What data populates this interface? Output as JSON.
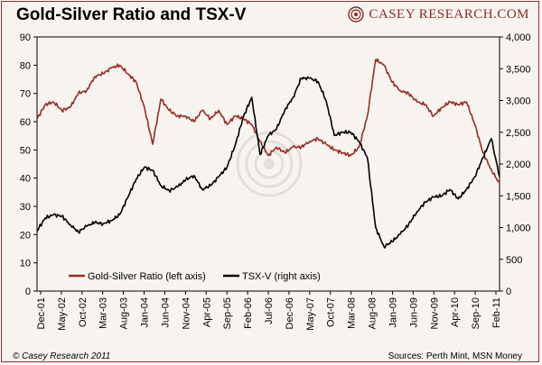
{
  "header": {
    "title": "Gold-Silver Ratio and TSX-V",
    "brand": "CASEY RESEARCH.COM"
  },
  "footer": {
    "copyright": "© Casey Research 2011",
    "sources": "Sources: Perth Mint, MSN Money"
  },
  "colors": {
    "ratio": "#9b2b24",
    "tsxv": "#000000",
    "frame": "#8c2a25",
    "background": "#f7f4ef"
  },
  "chart_data": {
    "type": "line",
    "title": "Gold-Silver Ratio and TSX-V",
    "x_ticks": [
      "Dec-01",
      "May-02",
      "Oct-02",
      "Mar-03",
      "Aug-03",
      "Jan-04",
      "Jun-04",
      "Nov-04",
      "Apr-05",
      "Sep-05",
      "Feb-06",
      "Jul-06",
      "Dec-06",
      "May-07",
      "Oct-07",
      "Mar-08",
      "Aug-08",
      "Jan-09",
      "Jun-09",
      "Nov-09",
      "Apr-10",
      "Sep-10",
      "Feb-11"
    ],
    "y_left": {
      "min": 0,
      "max": 90,
      "step": 10,
      "ticks": [
        "0",
        "10",
        "20",
        "30",
        "40",
        "50",
        "60",
        "70",
        "80",
        "90"
      ]
    },
    "y_right": {
      "min": 0,
      "max": 4000,
      "step": 500,
      "ticks": [
        "0",
        "500",
        "1,000",
        "1,500",
        "2,000",
        "2,500",
        "3,000",
        "3,500",
        "4,000"
      ]
    },
    "legend_placement": "bottom-left",
    "grid": false,
    "series": [
      {
        "name": "Gold-Silver Ratio (left axis)",
        "axis": "left",
        "x": [
          "2001-12",
          "2002-02",
          "2002-04",
          "2002-06",
          "2002-08",
          "2002-10",
          "2002-12",
          "2003-02",
          "2003-04",
          "2003-06",
          "2003-08",
          "2003-10",
          "2003-12",
          "2004-02",
          "2004-04",
          "2004-06",
          "2004-08",
          "2004-10",
          "2004-12",
          "2005-02",
          "2005-04",
          "2005-06",
          "2005-08",
          "2005-10",
          "2005-12",
          "2006-02",
          "2006-04",
          "2006-06",
          "2006-08",
          "2006-10",
          "2006-12",
          "2007-02",
          "2007-04",
          "2007-06",
          "2007-08",
          "2007-10",
          "2007-12",
          "2008-02",
          "2008-04",
          "2008-06",
          "2008-08",
          "2008-10",
          "2008-12",
          "2009-02",
          "2009-04",
          "2009-06",
          "2009-08",
          "2009-10",
          "2009-12",
          "2010-02",
          "2010-04",
          "2010-06",
          "2010-08",
          "2010-10",
          "2010-12",
          "2011-02",
          "2011-04"
        ],
        "values": [
          61,
          66,
          67,
          64,
          65,
          70,
          71,
          76,
          77,
          79,
          80,
          77,
          74,
          65,
          52,
          68,
          64,
          62,
          62,
          60,
          64,
          61,
          64,
          59,
          62,
          61,
          59,
          53,
          48,
          51,
          49,
          51,
          51,
          53,
          54,
          52,
          50,
          49,
          48,
          51,
          62,
          82,
          80,
          74,
          71,
          70,
          67,
          66,
          62,
          65,
          67,
          66,
          67,
          59,
          49,
          43,
          38
        ]
      },
      {
        "name": "TSX-V (right axis)",
        "axis": "right",
        "x": [
          "2001-12",
          "2002-02",
          "2002-04",
          "2002-06",
          "2002-08",
          "2002-10",
          "2002-12",
          "2003-02",
          "2003-04",
          "2003-06",
          "2003-08",
          "2003-10",
          "2003-12",
          "2004-02",
          "2004-04",
          "2004-06",
          "2004-08",
          "2004-10",
          "2004-12",
          "2005-02",
          "2005-04",
          "2005-06",
          "2005-08",
          "2005-10",
          "2005-12",
          "2006-02",
          "2006-04",
          "2006-06",
          "2006-08",
          "2006-10",
          "2006-12",
          "2007-02",
          "2007-04",
          "2007-06",
          "2007-08",
          "2007-10",
          "2007-12",
          "2008-02",
          "2008-04",
          "2008-06",
          "2008-08",
          "2008-10",
          "2008-12",
          "2009-02",
          "2009-04",
          "2009-06",
          "2009-08",
          "2009-10",
          "2009-12",
          "2010-02",
          "2010-04",
          "2010-06",
          "2010-08",
          "2010-10",
          "2010-12",
          "2011-02",
          "2011-04"
        ],
        "values": [
          950,
          1150,
          1200,
          1180,
          1050,
          930,
          1020,
          1080,
          1060,
          1110,
          1200,
          1480,
          1760,
          1950,
          1900,
          1660,
          1580,
          1640,
          1750,
          1820,
          1600,
          1660,
          1800,
          1950,
          2300,
          2750,
          3050,
          2150,
          2450,
          2550,
          2850,
          3050,
          3350,
          3350,
          3300,
          3000,
          2450,
          2500,
          2500,
          2350,
          2100,
          1000,
          700,
          780,
          900,
          1050,
          1250,
          1400,
          1480,
          1500,
          1600,
          1450,
          1600,
          1800,
          2100,
          2400,
          1800
        ]
      }
    ]
  }
}
